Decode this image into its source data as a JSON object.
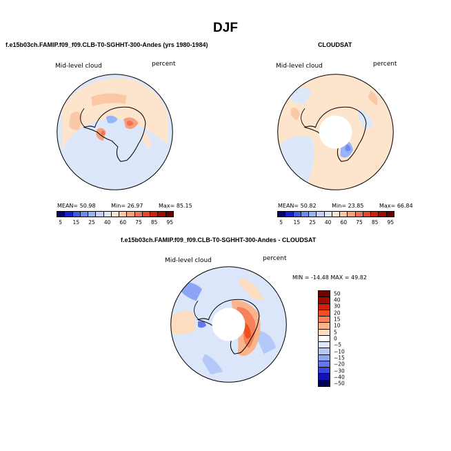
{
  "figure": {
    "title": "DJF"
  },
  "panels": [
    {
      "title": "f.e15b03ch.FAMIP.f09_f09.CLB-T0-SGHHT-300-Andes (yrs 1980-1984)",
      "left_label": "Mid-level cloud",
      "right_label": "percent",
      "stats": {
        "mean_label": "MEAN=",
        "mean": "50.98",
        "min_label": "Min=",
        "min": "26.97",
        "max_label": "Max=",
        "max": "85.15"
      }
    },
    {
      "title": "CLOUDSAT",
      "left_label": "Mid-level cloud",
      "right_label": "percent",
      "stats": {
        "mean_label": "MEAN=",
        "mean": "50.82",
        "min_label": "Min=",
        "min": "23.85",
        "max_label": "Max=",
        "max": "66.84"
      }
    },
    {
      "title": "f.e15b03ch.FAMIP.f09_f09.CLB-T0-SGHHT-300-Andes - CLOUDSAT",
      "left_label": "Mid-level cloud",
      "right_label": "percent",
      "minmax": "MIN = -14.48  MAX =  49.82"
    }
  ],
  "chart_data": [
    {
      "type": "heatmap",
      "projection": "south-polar-stereographic",
      "title": "f.e15b03ch.FAMIP.f09_f09.CLB-T0-SGHHT-300-Andes (yrs 1980-1984)",
      "variable": "Mid-level cloud",
      "units": "percent",
      "mean": 50.98,
      "min": 26.97,
      "max": 85.15,
      "colorbar_levels": [
        5,
        10,
        15,
        20,
        25,
        30,
        40,
        50,
        60,
        70,
        75,
        80,
        85,
        90,
        95
      ],
      "colorbar_tick_labels": [
        "5",
        "15",
        "25",
        "40",
        "60",
        "75",
        "85",
        "95"
      ]
    },
    {
      "type": "heatmap",
      "projection": "south-polar-stereographic",
      "title": "CLOUDSAT",
      "variable": "Mid-level cloud",
      "units": "percent",
      "mean": 50.82,
      "min": 23.85,
      "max": 66.84,
      "colorbar_levels": [
        5,
        10,
        15,
        20,
        25,
        30,
        40,
        50,
        60,
        70,
        75,
        80,
        85,
        90,
        95
      ],
      "colorbar_tick_labels": [
        "5",
        "15",
        "25",
        "40",
        "60",
        "75",
        "85",
        "95"
      ]
    },
    {
      "type": "heatmap",
      "projection": "south-polar-stereographic",
      "title": "f.e15b03ch.FAMIP.f09_f09.CLB-T0-SGHHT-300-Andes - CLOUDSAT",
      "variable": "Mid-level cloud",
      "units": "percent",
      "min": -14.48,
      "max": 49.82,
      "colorbar_levels": [
        50,
        40,
        30,
        20,
        15,
        10,
        5,
        0,
        -5,
        -10,
        -15,
        -20,
        -30,
        -40,
        -50
      ],
      "colorbar_tick_labels": [
        "50",
        "40",
        "30",
        "20",
        "15",
        "10",
        "5",
        "0",
        "−5",
        "−10",
        "−15",
        "−20",
        "−30",
        "−40",
        "−50"
      ]
    }
  ],
  "colors": {
    "abs_palette": [
      "#08006e",
      "#1a1ed2",
      "#3c5ae6",
      "#6e8cf0",
      "#96b4fa",
      "#bed2fa",
      "#dce8fa",
      "#fde4cc",
      "#fbc8a5",
      "#f7a07c",
      "#f37350",
      "#e8462a",
      "#d21e0a",
      "#a00a00",
      "#6e0000"
    ],
    "diff_palette": [
      "#6e0000",
      "#a00a00",
      "#d21e0a",
      "#f0501e",
      "#f5825a",
      "#fab48c",
      "#fddcc0",
      "#ffffff",
      "#dce6fa",
      "#b4c8fa",
      "#8ca5f5",
      "#6478eb",
      "#3c46dc",
      "#1414b4",
      "#00005a"
    ],
    "land_line": "#000000",
    "pole_mask": "#ffffff"
  }
}
